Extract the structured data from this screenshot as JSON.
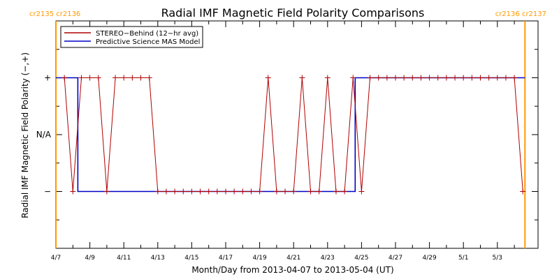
{
  "chart_data": {
    "type": "line",
    "title": "Radial IMF Magnetic Field Polarity Comparisons",
    "xlabel": "Month/Day from 2013-04-07 to 2013-05-04 (UT)",
    "ylabel": "Radial IMF Magnetic Field Polarity (−,+)",
    "x_range": [
      "2013-04-07",
      "2013-05-04"
    ],
    "x_ticks": [
      "4/7",
      "4/9",
      "4/11",
      "4/13",
      "4/15",
      "4/17",
      "4/19",
      "4/21",
      "4/23",
      "4/25",
      "4/27",
      "4/29",
      "5/1",
      "5/3"
    ],
    "y_categories": [
      "−",
      "N/A",
      "+"
    ],
    "y_values": {
      "minus": -1,
      "na": 0,
      "plus": 1
    },
    "ylim": [
      -2,
      2
    ],
    "grid": false,
    "legend_position": "top-left",
    "colors": {
      "stereo": "#b00000",
      "model": "#0000c8",
      "cr_marker": "#ff9900"
    },
    "carrington_markers": [
      {
        "x": "2013-04-07 00:00",
        "label": "cr2135 cr2136",
        "side": "left"
      },
      {
        "x": "2013-05-04 15:00",
        "label": "cr2136 cr2137",
        "side": "right"
      }
    ],
    "series": [
      {
        "name": "STEREO−Behind (12−hr avg)",
        "style": "line-with-plus-markers",
        "x": [
          "2013-04-07 00:00",
          "2013-04-07 12:00",
          "2013-04-08 00:00",
          "2013-04-08 12:00",
          "2013-04-09 00:00",
          "2013-04-09 12:00",
          "2013-04-10 00:00",
          "2013-04-10 12:00",
          "2013-04-11 00:00",
          "2013-04-11 12:00",
          "2013-04-12 00:00",
          "2013-04-12 12:00",
          "2013-04-13 00:00",
          "2013-04-13 12:00",
          "2013-04-14 00:00",
          "2013-04-14 12:00",
          "2013-04-15 00:00",
          "2013-04-15 12:00",
          "2013-04-16 00:00",
          "2013-04-16 12:00",
          "2013-04-17 00:00",
          "2013-04-17 12:00",
          "2013-04-18 00:00",
          "2013-04-18 12:00",
          "2013-04-19 00:00",
          "2013-04-19 12:00",
          "2013-04-20 00:00",
          "2013-04-20 12:00",
          "2013-04-21 00:00",
          "2013-04-21 12:00",
          "2013-04-22 00:00",
          "2013-04-22 12:00",
          "2013-04-23 00:00",
          "2013-04-23 12:00",
          "2013-04-24 00:00",
          "2013-04-24 12:00",
          "2013-04-25 00:00",
          "2013-04-25 12:00",
          "2013-04-26 00:00",
          "2013-04-26 12:00",
          "2013-04-27 00:00",
          "2013-04-27 12:00",
          "2013-04-28 00:00",
          "2013-04-28 12:00",
          "2013-04-29 00:00",
          "2013-04-29 12:00",
          "2013-04-30 00:00",
          "2013-04-30 12:00",
          "2013-05-01 00:00",
          "2013-05-01 12:00",
          "2013-05-02 00:00",
          "2013-05-02 12:00",
          "2013-05-03 00:00",
          "2013-05-03 12:00",
          "2013-05-04 00:00",
          "2013-05-04 12:00"
        ],
        "values": [
          null,
          1,
          -1,
          1,
          1,
          1,
          -1,
          1,
          1,
          1,
          1,
          1,
          -1,
          -1,
          -1,
          -1,
          -1,
          -1,
          -1,
          -1,
          -1,
          -1,
          -1,
          -1,
          -1,
          1,
          -1,
          -1,
          -1,
          1,
          -1,
          -1,
          1,
          -1,
          -1,
          1,
          -1,
          1,
          1,
          1,
          1,
          1,
          1,
          1,
          1,
          1,
          1,
          1,
          1,
          1,
          1,
          1,
          1,
          1,
          1,
          -1
        ]
      },
      {
        "name": "Predictive Science MAS Model",
        "style": "step",
        "x": [
          "2013-04-07 00:00",
          "2013-04-08 07:00",
          "2013-04-08 07:00",
          "2013-04-24 15:00",
          "2013-04-24 15:00",
          "2013-05-04 15:00"
        ],
        "values": [
          1,
          1,
          -1,
          -1,
          1,
          1
        ]
      }
    ]
  }
}
